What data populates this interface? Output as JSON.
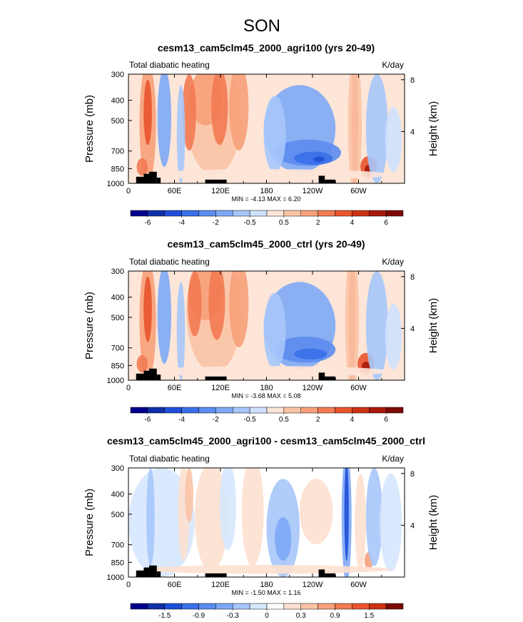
{
  "figure": {
    "season": "SON"
  },
  "chart_data": [
    {
      "type": "heatmap",
      "title": "cesm13_cam5clm45_2000_agri100 (yrs 20-49)",
      "left_label": "Total diabatic heating",
      "units_label": "K/day",
      "ylabel": "Pressure (mb)",
      "y2label": "Height (km)",
      "x_ticks": [
        "0",
        "60E",
        "120E",
        "180",
        "120W",
        "60W"
      ],
      "x_tick_values": [
        0,
        60,
        120,
        180,
        240,
        300
      ],
      "xlim": [
        0,
        360
      ],
      "y_ticks": [
        "300",
        "400",
        "500",
        "700",
        "850",
        "1000"
      ],
      "y_tick_values": [
        300,
        400,
        500,
        700,
        850,
        1000
      ],
      "ylim": [
        1000,
        300
      ],
      "y2_ticks": [
        "8",
        "4"
      ],
      "y2_tick_values": [
        8,
        4
      ],
      "stats": "MIN =   -4.13   MAX =    6.20",
      "min": -4.13,
      "max": 6.2,
      "colorbar_labels": [
        "-6",
        "-4",
        "-2",
        "-0.5",
        "0.5",
        "2",
        "4",
        "6"
      ],
      "colorbar_levels": [
        -7,
        -6,
        -5,
        -4,
        -3,
        -2,
        -1,
        -0.5,
        0,
        0.5,
        1,
        2,
        3,
        4,
        5,
        6,
        7
      ]
    },
    {
      "type": "heatmap",
      "title": "cesm13_cam5clm45_2000_ctrl (yrs 20-49)",
      "left_label": "Total diabatic heating",
      "units_label": "K/day",
      "ylabel": "Pressure (mb)",
      "y2label": "Height (km)",
      "x_ticks": [
        "0",
        "60E",
        "120E",
        "180",
        "120W",
        "60W"
      ],
      "x_tick_values": [
        0,
        60,
        120,
        180,
        240,
        300
      ],
      "xlim": [
        0,
        360
      ],
      "y_ticks": [
        "300",
        "400",
        "500",
        "700",
        "850",
        "1000"
      ],
      "y_tick_values": [
        300,
        400,
        500,
        700,
        850,
        1000
      ],
      "ylim": [
        1000,
        300
      ],
      "y2_ticks": [
        "8",
        "4"
      ],
      "y2_tick_values": [
        8,
        4
      ],
      "stats": "MIN =   -3.68   MAX =    5.08",
      "min": -3.68,
      "max": 5.08,
      "colorbar_labels": [
        "-6",
        "-4",
        "-2",
        "-0.5",
        "0.5",
        "2",
        "4",
        "6"
      ],
      "colorbar_levels": [
        -7,
        -6,
        -5,
        -4,
        -3,
        -2,
        -1,
        -0.5,
        0,
        0.5,
        1,
        2,
        3,
        4,
        5,
        6,
        7
      ]
    },
    {
      "type": "heatmap",
      "title": "cesm13_cam5clm45_2000_agri100 - cesm13_cam5clm45_2000_ctrl",
      "left_label": "Total diabatic heating",
      "units_label": "K/day",
      "ylabel": "Pressure (mb)",
      "y2label": "Height (km)",
      "x_ticks": [
        "0",
        "60E",
        "120E",
        "180",
        "120W",
        "60W"
      ],
      "x_tick_values": [
        0,
        60,
        120,
        180,
        240,
        300
      ],
      "xlim": [
        0,
        360
      ],
      "y_ticks": [
        "300",
        "400",
        "500",
        "700",
        "850",
        "1000"
      ],
      "y_tick_values": [
        300,
        400,
        500,
        700,
        850,
        1000
      ],
      "ylim": [
        1000,
        300
      ],
      "y2_ticks": [
        "8",
        "4"
      ],
      "y2_tick_values": [
        8,
        4
      ],
      "stats": "MIN =   -1.50   MAX =    1.16",
      "min": -1.5,
      "max": 1.16,
      "colorbar_labels": [
        "-1.5",
        "-0.9",
        "-0.3",
        "0",
        "0.3",
        "0.9",
        "1.5"
      ],
      "colorbar_levels": [
        -2.1,
        -1.8,
        -1.5,
        -1.2,
        -0.9,
        -0.6,
        -0.3,
        -0.1,
        0.1,
        0.3,
        0.6,
        0.9,
        1.2,
        1.5,
        1.8,
        2.1
      ]
    }
  ],
  "colors": {
    "colorbar_panels_1_2": [
      "#00008c",
      "#0f2fa8",
      "#1f4fd8",
      "#3a6fe8",
      "#5b8cf0",
      "#7ea8f6",
      "#a6c6fb",
      "#cfe1fd",
      "#fde6d8",
      "#fbc3a6",
      "#f7a07a",
      "#f27a52",
      "#e8542e",
      "#cc3214",
      "#a8190a",
      "#7c0a04"
    ],
    "colorbar_panel_3": [
      "#00008c",
      "#0f2fa8",
      "#1f4fd8",
      "#3a6fe8",
      "#5b8cf0",
      "#7ea8f6",
      "#a6c6fb",
      "#d6e7fd",
      "#ffffff",
      "#fde0cf",
      "#fbc3a6",
      "#f7a07a",
      "#f27a52",
      "#e8542e",
      "#cc3214",
      "#7c0a04"
    ],
    "topography": "#000000"
  }
}
